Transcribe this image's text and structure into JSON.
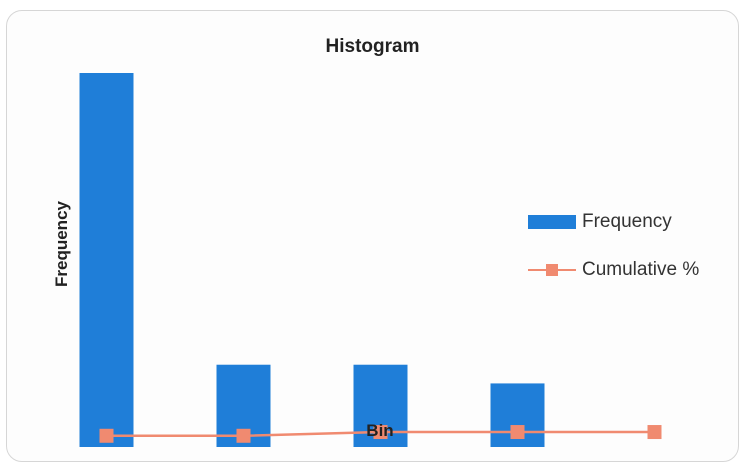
{
  "chart_data": {
    "type": "bar",
    "title": "Histogram",
    "xlabel": "Bin",
    "ylabel": "Frequency",
    "categories": [
      "",
      "",
      "",
      "",
      ""
    ],
    "ylim": [
      0,
      100
    ],
    "series": [
      {
        "name": "Frequency",
        "type": "bar",
        "values": [
          100,
          22,
          22,
          17,
          null
        ],
        "color": "#1f7ed8"
      },
      {
        "name": "Cumulative %",
        "type": "line",
        "values": [
          3,
          3,
          4,
          4,
          4
        ],
        "color": "#f08a70"
      }
    ],
    "grid": false,
    "legend_position": "right"
  }
}
